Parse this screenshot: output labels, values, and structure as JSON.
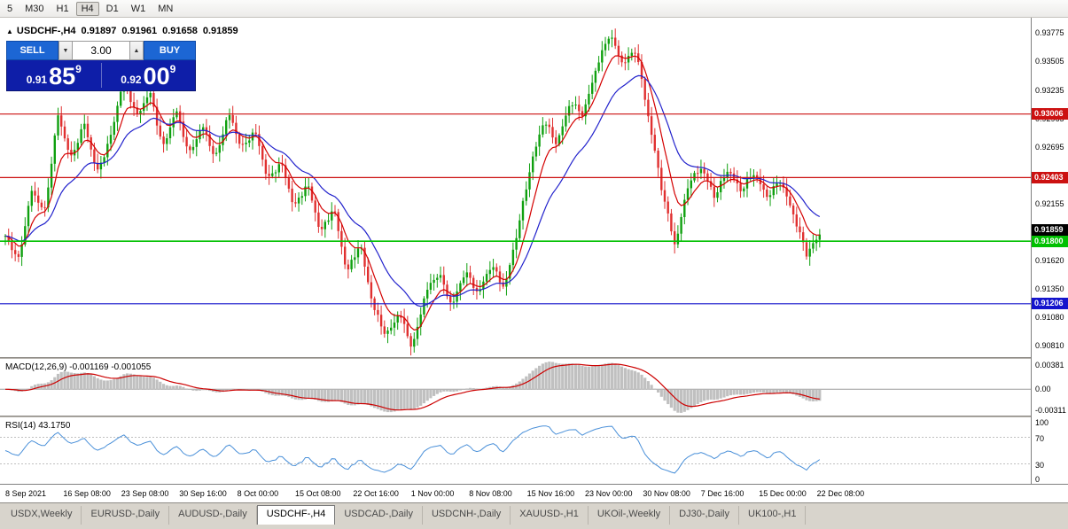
{
  "toolbar": {
    "timeframes": [
      "5",
      "M30",
      "H1",
      "H4",
      "D1",
      "W1",
      "MN"
    ],
    "active_timeframe": "H4"
  },
  "chart_header": {
    "collapse_icon": "▲",
    "symbol": "USDCHF-,H4",
    "open": "0.91897",
    "high": "0.91961",
    "low": "0.91658",
    "close": "0.91859"
  },
  "trade_panel": {
    "sell_label": "SELL",
    "buy_label": "BUY",
    "volume": "3.00",
    "spinner_down_icon": "▼",
    "spinner_up_icon": "▲",
    "sell_price": {
      "base": "0.91",
      "big": "85",
      "sup": "9"
    },
    "buy_price": {
      "base": "0.92",
      "big": "00",
      "sup": "9"
    }
  },
  "chart_data": {
    "type": "candlestick",
    "symbol": "USDCHF-",
    "timeframe": "H4",
    "y_range": [
      0.907,
      0.9392
    ],
    "price_ticks": [
      "0.93775",
      "0.93505",
      "0.93235",
      "0.92965",
      "0.92695",
      "0.92425",
      "0.92155",
      "0.91885",
      "0.91620",
      "0.91350",
      "0.91080",
      "0.90810"
    ],
    "time_ticks": [
      "8 Sep 2021",
      "16 Sep 08:00",
      "23 Sep 08:00",
      "30 Sep 16:00",
      "8 Oct 00:00",
      "15 Oct 08:00",
      "22 Oct 16:00",
      "1 Nov 00:00",
      "8 Nov 08:00",
      "15 Nov 16:00",
      "23 Nov 00:00",
      "30 Nov 08:00",
      "7 Dec 16:00",
      "15 Dec 00:00",
      "22 Dec 08:00"
    ],
    "horizontal_lines": [
      {
        "price": 0.93006,
        "label": "0.93006",
        "color": "#cc1111"
      },
      {
        "price": 0.92403,
        "label": "0.92403",
        "color": "#cc1111"
      },
      {
        "price": 0.918,
        "label": "0.91800",
        "color": "#00c000"
      },
      {
        "price": 0.91206,
        "label": "0.91206",
        "color": "#1414cc"
      }
    ],
    "current_price": {
      "value": 0.91859,
      "label": "0.91859",
      "color": "#000000"
    },
    "approx_close_path": [
      0.9185,
      0.9162,
      0.9228,
      0.9208,
      0.93,
      0.9258,
      0.9292,
      0.9245,
      0.9278,
      0.9335,
      0.9298,
      0.9322,
      0.9268,
      0.9305,
      0.9262,
      0.929,
      0.9258,
      0.9302,
      0.9268,
      0.9285,
      0.9238,
      0.9255,
      0.9212,
      0.9235,
      0.9188,
      0.9212,
      0.915,
      0.9178,
      0.9118,
      0.909,
      0.9112,
      0.9078,
      0.9132,
      0.915,
      0.9118,
      0.9152,
      0.913,
      0.9158,
      0.9135,
      0.919,
      0.9252,
      0.9295,
      0.9272,
      0.9312,
      0.93,
      0.9345,
      0.9377,
      0.9348,
      0.9362,
      0.9295,
      0.9228,
      0.9175,
      0.9235,
      0.925,
      0.9222,
      0.9248,
      0.9228,
      0.9245,
      0.9222,
      0.9238,
      0.9205,
      0.9168,
      0.9186
    ],
    "colors": {
      "up": "#0fa00f",
      "down": "#e03030",
      "ma_fast": "#d40000",
      "ma_slow": "#2222cc",
      "macd_hist": "#c0c0c0",
      "macd_signal": "#cc0000",
      "rsi_line": "#4a90d9",
      "level_dash": "#c0c0c0"
    }
  },
  "macd_panel": {
    "label": "MACD(12,26,9) -0.001169 -0.001055",
    "axis": [
      "0.00381",
      "0.00",
      "-0.00311"
    ]
  },
  "rsi_panel": {
    "label": "RSI(14) 43.1750",
    "axis": [
      "100",
      "70",
      "30",
      "0"
    ],
    "levels": [
      70,
      30
    ]
  },
  "tabs": {
    "items": [
      "USDX,Weekly",
      "EURUSD-,Daily",
      "AUDUSD-,Daily",
      "USDCHF-,H4",
      "USDCAD-,Daily",
      "USDCNH-,Daily",
      "XAUUSD-,H1",
      "UKOil-,Weekly",
      "DJ30-,Daily",
      "UK100-,H1"
    ],
    "active": "USDCHF-,H4"
  }
}
